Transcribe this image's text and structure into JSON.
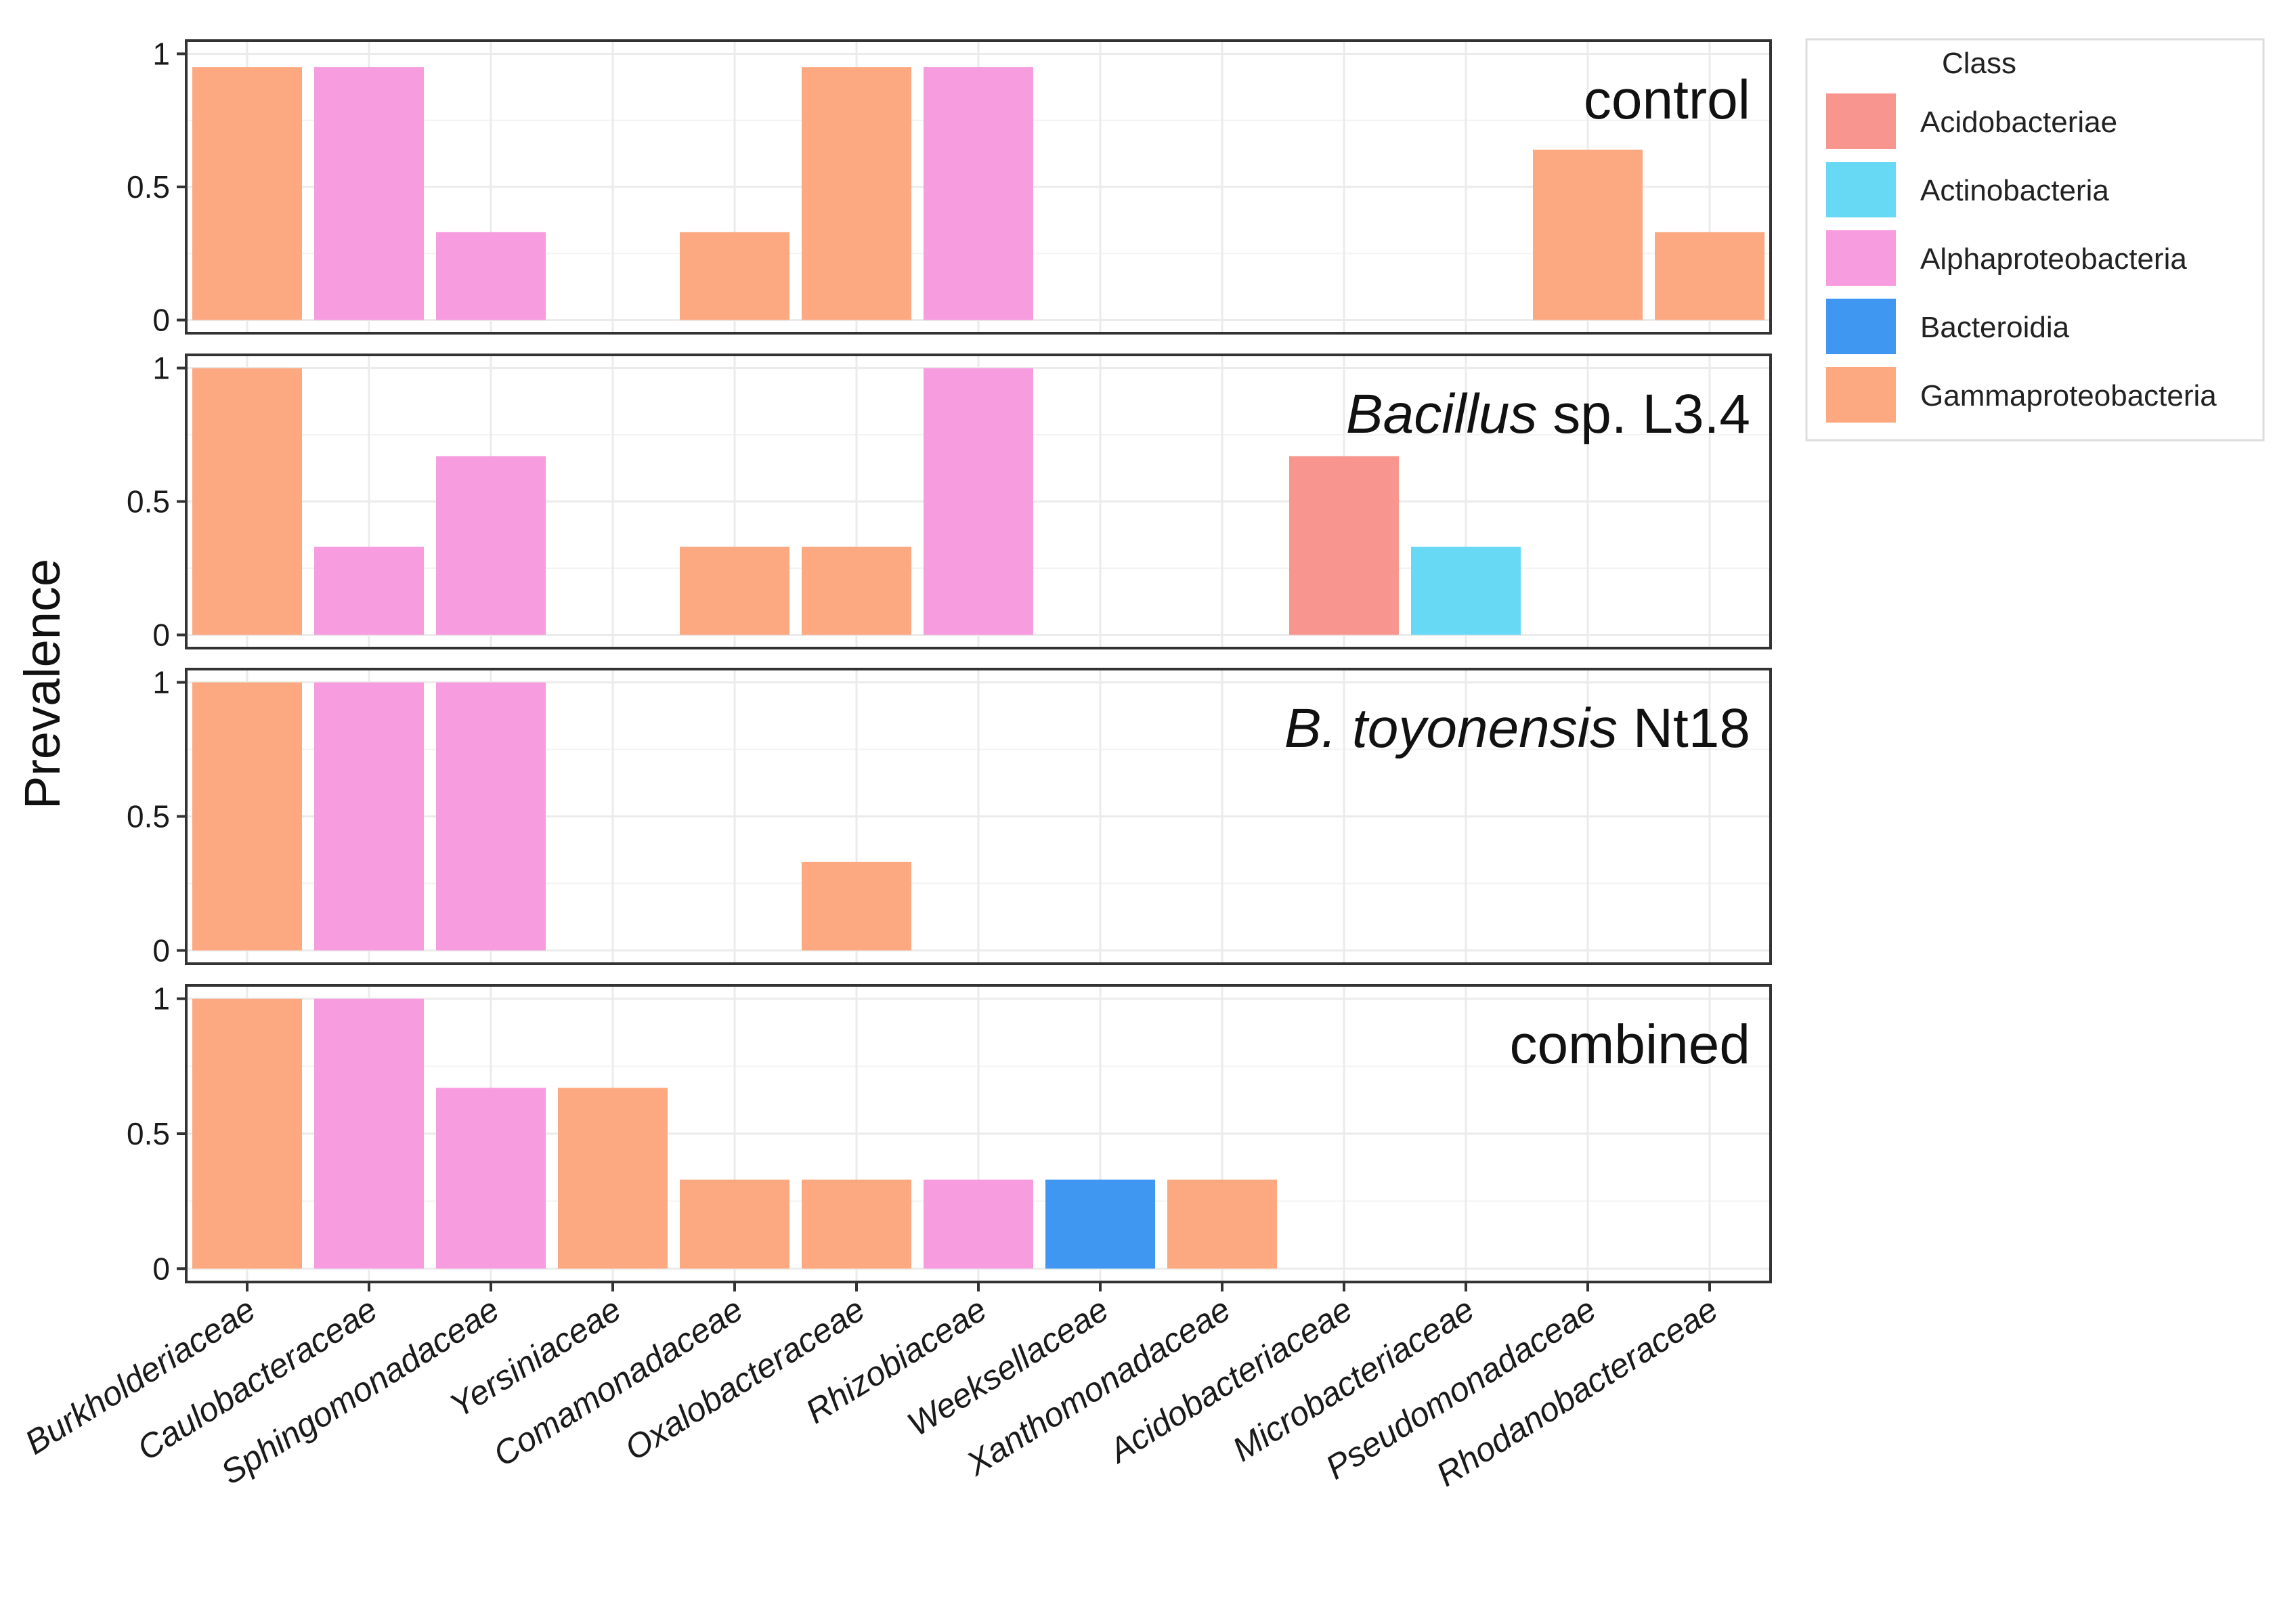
{
  "chart_data": {
    "type": "bar",
    "ylabel": "Prevalence",
    "xlabel": "",
    "ylim": [
      0,
      1
    ],
    "y_ticks": [
      "0",
      "0.5",
      "1"
    ],
    "grid": true,
    "legend_position": "right",
    "legend": {
      "title": "Class",
      "entries": [
        {
          "name": "Acidobacteriae",
          "color": "#F8958E"
        },
        {
          "name": "Actinobacteria",
          "color": "#68D9F4"
        },
        {
          "name": "Alphaproteobacteria",
          "color": "#F79CDF"
        },
        {
          "name": "Bacteroidia",
          "color": "#3F97F2"
        },
        {
          "name": "Gammaproteobacteria",
          "color": "#FCA982"
        }
      ]
    },
    "categories": [
      "Burkholderiaceae",
      "Caulobacteraceae",
      "Sphingomonadaceae",
      "Yersiniaceae",
      "Comamonadaceae",
      "Oxalobacteraceae",
      "Rhizobiaceae",
      "Weeksellaceae",
      "Xanthomonadaceae",
      "Acidobacteriaceae",
      "Microbacteriaceae",
      "Pseudomonadaceae",
      "Rhodanobacteraceae"
    ],
    "category_class": [
      "Gammaproteobacteria",
      "Alphaproteobacteria",
      "Alphaproteobacteria",
      "Gammaproteobacteria",
      "Gammaproteobacteria",
      "Gammaproteobacteria",
      "Alphaproteobacteria",
      "Bacteroidia",
      "Gammaproteobacteria",
      "Acidobacteriae",
      "Actinobacteria",
      "Gammaproteobacteria",
      "Gammaproteobacteria"
    ],
    "panels": [
      {
        "title_plain": "control",
        "title_italic": "",
        "values": [
          0.95,
          0.95,
          0.33,
          0,
          0.33,
          0.95,
          0.95,
          0,
          0,
          0,
          0,
          0.64,
          0.33
        ]
      },
      {
        "title_plain": " sp. L3.4",
        "title_italic": "Bacillus",
        "values": [
          1.0,
          0.33,
          0.67,
          0,
          0.33,
          0.33,
          1.0,
          0,
          0,
          0.67,
          0.33,
          0,
          0
        ]
      },
      {
        "title_plain": " Nt18",
        "title_italic": "B. toyonensis",
        "values": [
          1.0,
          1.0,
          1.0,
          0,
          0,
          0.33,
          0,
          0,
          0,
          0,
          0,
          0,
          0
        ]
      },
      {
        "title_plain": "combined",
        "title_italic": "",
        "values": [
          1.0,
          1.0,
          0.67,
          0.67,
          0.33,
          0.33,
          0.33,
          0.33,
          0.33,
          0,
          0,
          0,
          0
        ]
      }
    ]
  }
}
